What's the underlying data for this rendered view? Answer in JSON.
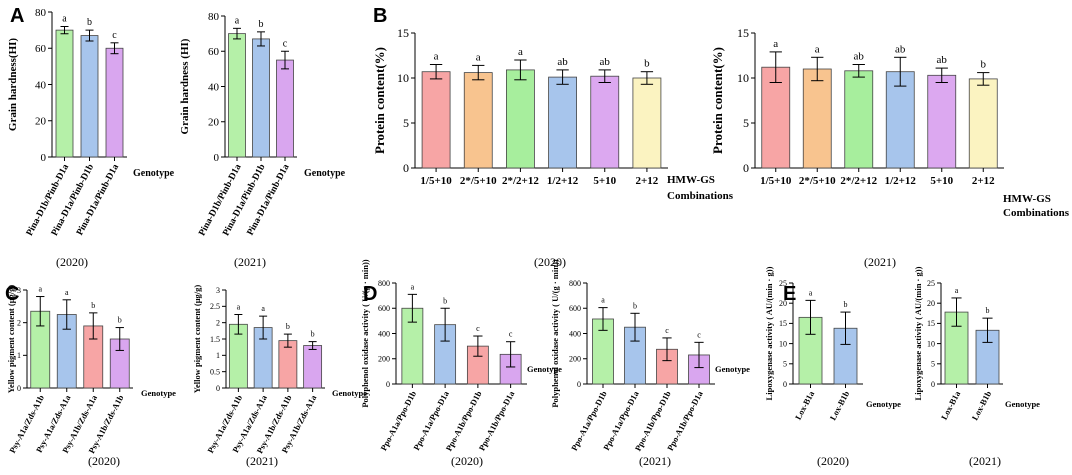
{
  "chart_data": [
    {
      "id": "A1",
      "panel": "A",
      "type": "bar",
      "year": "(2020)",
      "ylabel": "Grain hardness(HI)",
      "xlabel": "Genotype",
      "ylim": [
        0,
        80
      ],
      "yticks": [
        0,
        20,
        40,
        60,
        80
      ],
      "categories": [
        "Pina-D1b/Pinb-D1a",
        "Pina-D1a/Pinb-D1b",
        "Pina-D1a/Pinb-D1a"
      ],
      "values": [
        70,
        67,
        60
      ],
      "errors": [
        2,
        3,
        3
      ],
      "letters": [
        "a",
        "b",
        "c"
      ],
      "colors": [
        "#b5f0a8",
        "#a7c5ec",
        "#d9a6ef"
      ]
    },
    {
      "id": "A2",
      "panel": "A",
      "type": "bar",
      "year": "(2021)",
      "ylabel": "Grain hardness (HI)",
      "xlabel": "Genotype",
      "ylim": [
        0,
        80
      ],
      "yticks": [
        0,
        20,
        40,
        60,
        80
      ],
      "categories": [
        "Pina-D1b/Pinb-D1a",
        "Pina-D1a/Pinb-D1b",
        "Pina-D1a/Pinb-D1a"
      ],
      "values": [
        70,
        67,
        55
      ],
      "errors": [
        3,
        4,
        5
      ],
      "letters": [
        "a",
        "b",
        "c"
      ],
      "colors": [
        "#b5f0a8",
        "#a7c5ec",
        "#d9a6ef"
      ]
    },
    {
      "id": "B1",
      "panel": "B",
      "type": "bar",
      "year": "(2020)",
      "ylabel": "Protein content(%)",
      "xlabel": "HMW-GS Combinations",
      "ylim": [
        0,
        15
      ],
      "yticks": [
        0,
        5,
        10,
        15
      ],
      "categories": [
        "1/5+10",
        "2*/5+10",
        "2*/2+12",
        "1/2+12",
        "5+10",
        "2+12"
      ],
      "values": [
        10.7,
        10.6,
        10.9,
        10.1,
        10.2,
        10.0
      ],
      "errors": [
        0.8,
        0.8,
        1.1,
        0.8,
        0.7,
        0.7
      ],
      "letters": [
        "a",
        "a",
        "a",
        "ab",
        "ab",
        "b"
      ],
      "colors": [
        "#f7a5a5",
        "#f8c48f",
        "#a7ee9d",
        "#a7c5ec",
        "#dca8f0",
        "#fbf3c1"
      ]
    },
    {
      "id": "B2",
      "panel": "B",
      "type": "bar",
      "year": "(2021)",
      "ylabel": "Protein content(%)",
      "xlabel": "HMW-GS Combinations",
      "ylim": [
        0,
        15
      ],
      "yticks": [
        0,
        5,
        10,
        15
      ],
      "categories": [
        "1/5+10",
        "2*/5+10",
        "2*/2+12",
        "1/2+12",
        "5+10",
        "2+12"
      ],
      "values": [
        11.2,
        11.0,
        10.8,
        10.7,
        10.3,
        9.9
      ],
      "errors": [
        1.7,
        1.3,
        0.7,
        1.6,
        0.8,
        0.7
      ],
      "letters": [
        "a",
        "a",
        "ab",
        "ab",
        "ab",
        "b"
      ],
      "colors": [
        "#f7a5a5",
        "#f8c48f",
        "#a7ee9d",
        "#a7c5ec",
        "#dca8f0",
        "#fbf3c1"
      ]
    },
    {
      "id": "C1",
      "panel": "C",
      "type": "bar",
      "year": "(2020)",
      "ylabel": "Yellow pigment content (μg/g)",
      "xlabel": "Genotype",
      "ylim": [
        0,
        3
      ],
      "yticks": [
        0,
        1,
        2,
        3
      ],
      "categories": [
        "Psy-A1a/Zds-A1b",
        "Psy-A1a/Zds-A1a",
        "Psy-A1b/Zds-A1a",
        "Psy-A1b/Zds-A1b"
      ],
      "values": [
        2.35,
        2.25,
        1.9,
        1.5
      ],
      "errors": [
        0.45,
        0.45,
        0.4,
        0.35
      ],
      "letters": [
        "a",
        "a",
        "b",
        "b"
      ],
      "colors": [
        "#b5f0a8",
        "#a7c5ec",
        "#f7a5a5",
        "#d9a6ef"
      ]
    },
    {
      "id": "C2",
      "panel": "C",
      "type": "bar",
      "year": "(2021)",
      "ylabel": "Yellow pigment content (μg/g)",
      "xlabel": "Genotype",
      "ylim": [
        0,
        3
      ],
      "yticks": [
        0,
        0.5,
        1,
        1.5,
        2,
        2.5,
        3
      ],
      "categories": [
        "Psy-A1a/Zds-A1b",
        "Psy-A1a/Zds-A1a",
        "Psy-A1b/Zds-A1b",
        "Psy-A1b/Zds-A1a"
      ],
      "values": [
        1.95,
        1.85,
        1.45,
        1.3
      ],
      "errors": [
        0.3,
        0.35,
        0.2,
        0.12
      ],
      "letters": [
        "a",
        "a",
        "b",
        "b"
      ],
      "colors": [
        "#b5f0a8",
        "#a7c5ec",
        "#f7a5a5",
        "#d9a6ef"
      ]
    },
    {
      "id": "D1",
      "panel": "D",
      "type": "bar",
      "year": "(2020)",
      "ylabel": "Polyphenol oxidase activity ( U/(g · min))",
      "xlabel": "Genotype",
      "ylim": [
        0,
        800
      ],
      "yticks": [
        0,
        200,
        400,
        600,
        800
      ],
      "categories": [
        "Ppo-A1a/Ppo-D1b",
        "Ppo-A1a/Ppo-D1a",
        "Ppo-A1b/Ppo-D1b",
        "Ppo-A1b/Ppo-D1a"
      ],
      "values": [
        600,
        470,
        300,
        235
      ],
      "errors": [
        110,
        130,
        80,
        100
      ],
      "letters": [
        "a",
        "b",
        "c",
        "c"
      ],
      "colors": [
        "#b5f0a8",
        "#a7c5ec",
        "#f7a5a5",
        "#d9a6ef"
      ]
    },
    {
      "id": "D2",
      "panel": "D",
      "type": "bar",
      "year": "(2021)",
      "ylabel": "Polyphenol oxidase activity ( U/(g · min))",
      "xlabel": "Genotype",
      "ylim": [
        0,
        800
      ],
      "yticks": [
        0,
        200,
        400,
        600,
        800
      ],
      "categories": [
        "Ppo-A1a/Ppo-D1b",
        "Ppo-A1a/Ppo-D1a",
        "Ppo-A1b/Ppo-D1b",
        "Ppo-A1b/Ppo-D1a"
      ],
      "values": [
        515,
        450,
        275,
        230
      ],
      "errors": [
        90,
        110,
        90,
        100
      ],
      "letters": [
        "a",
        "b",
        "c",
        "c"
      ],
      "colors": [
        "#b5f0a8",
        "#a7c5ec",
        "#f7a5a5",
        "#d9a6ef"
      ]
    },
    {
      "id": "E1",
      "panel": "E",
      "type": "bar",
      "year": "(2020)",
      "ylabel": "Lipoxygenase activity ( AU/(min · g))",
      "xlabel": "Genotype",
      "ylim": [
        0,
        25
      ],
      "yticks": [
        0,
        5,
        10,
        15,
        20,
        25
      ],
      "categories": [
        "Lox-B1a",
        "Lox-B1b"
      ],
      "values": [
        16.5,
        13.8
      ],
      "errors": [
        4.2,
        4.0
      ],
      "letters": [
        "a",
        "b"
      ],
      "colors": [
        "#b5f0a8",
        "#a7c5ec"
      ]
    },
    {
      "id": "E2",
      "panel": "E",
      "type": "bar",
      "year": "(2021)",
      "ylabel": "Lipoxygenase activity ( AU/(min · g))",
      "xlabel": "Genotype",
      "ylim": [
        0,
        25
      ],
      "yticks": [
        0,
        5,
        10,
        15,
        20,
        25
      ],
      "categories": [
        "Lox-B1a",
        "Lox-B1b"
      ],
      "values": [
        17.8,
        13.3
      ],
      "errors": [
        3.5,
        3.0
      ],
      "letters": [
        "a",
        "b"
      ],
      "colors": [
        "#b5f0a8",
        "#a7c5ec"
      ]
    }
  ],
  "panel_labels": [
    "A",
    "B",
    "C",
    "D",
    "E"
  ],
  "captions": [
    "(2020)",
    "(2021)",
    "(2020)",
    "(2021)",
    "(2020)",
    "(2021)",
    "(2020)",
    "(2021)"
  ]
}
